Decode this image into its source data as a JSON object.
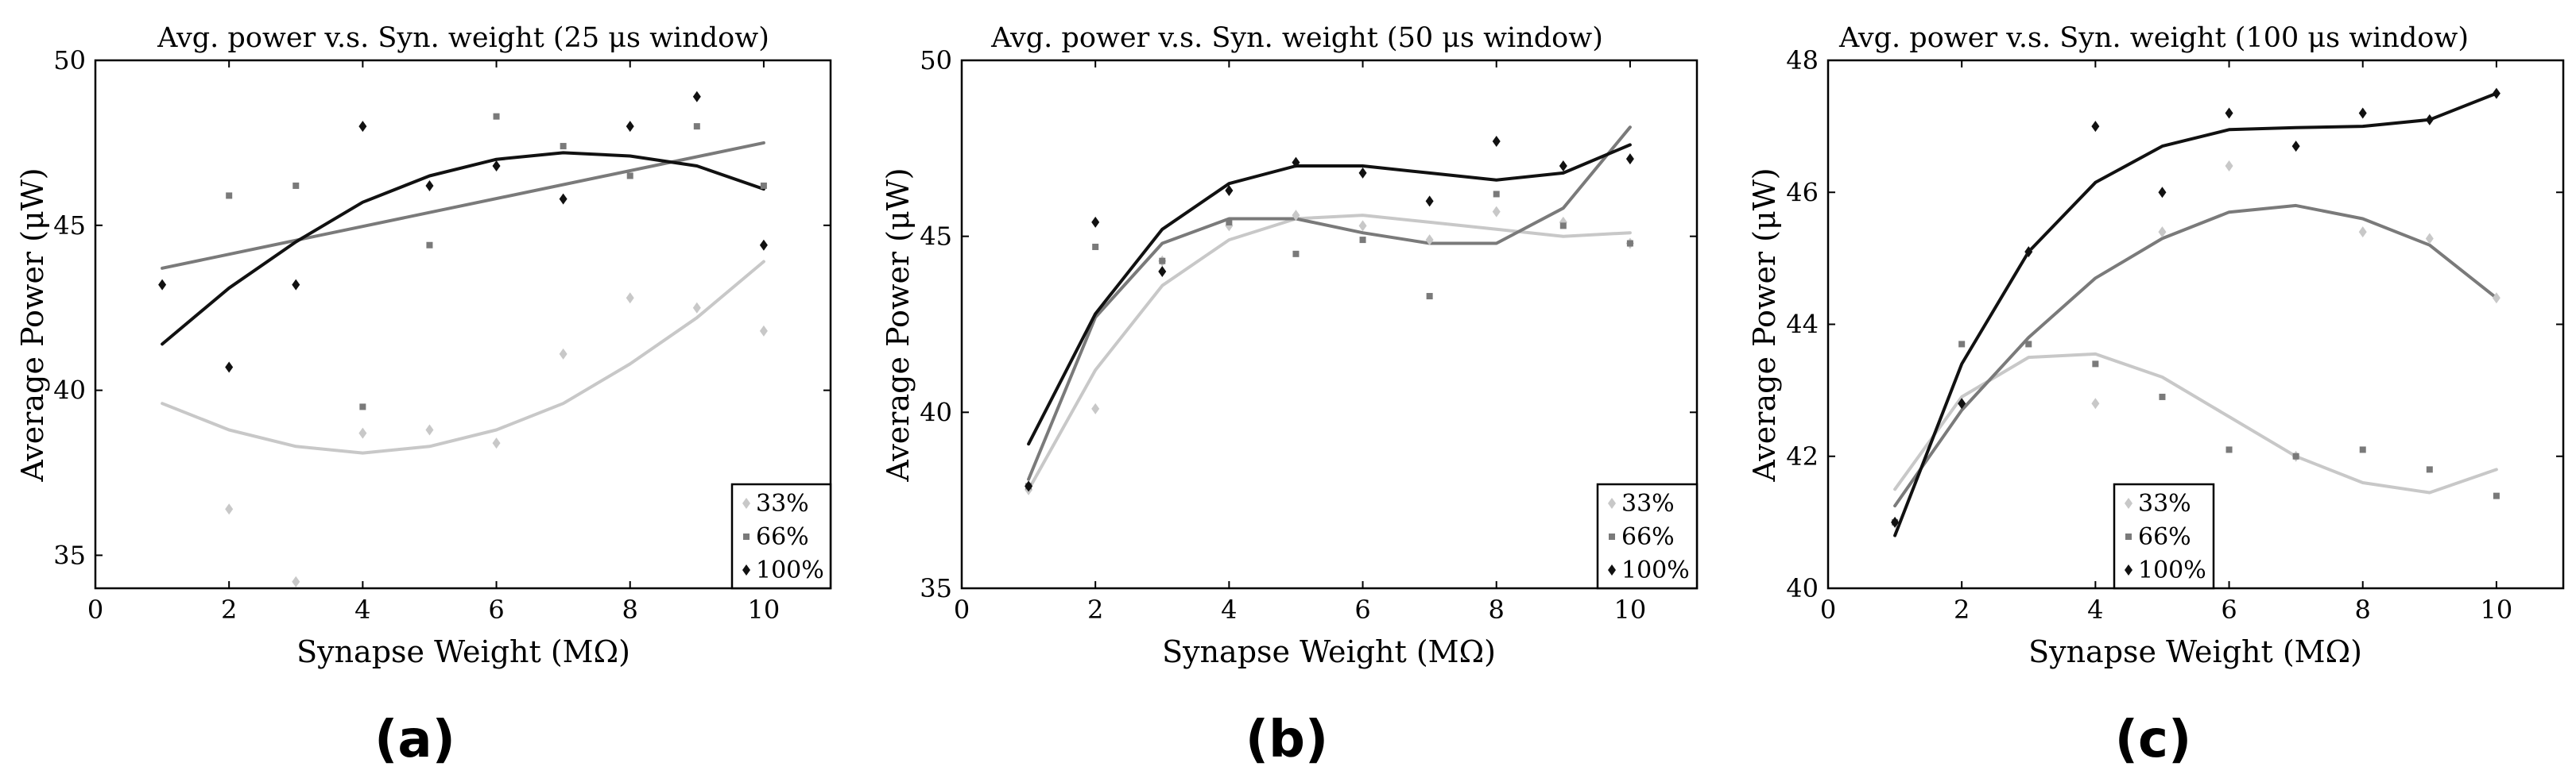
{
  "chart_data": [
    {
      "type": "scatter",
      "panel_label": "(a)",
      "title": "Avg. power v.s. Syn. weight (25 μs window)",
      "xlabel": "Synapse Weight (MΩ)",
      "ylabel": "Average Power (μW)",
      "xlim": [
        0,
        11
      ],
      "ylim": [
        34,
        50
      ],
      "xticks": [
        0,
        2,
        4,
        6,
        8,
        10
      ],
      "yticks": [
        35,
        40,
        45,
        50
      ],
      "legend_position": "bottom-right",
      "series": [
        {
          "name": "33%",
          "color": "#c8c8c8",
          "marker": "diamond",
          "points": [
            [
              2,
              36.4
            ],
            [
              3,
              34.2
            ],
            [
              4,
              38.7
            ],
            [
              5,
              38.8
            ],
            [
              6,
              38.4
            ],
            [
              7,
              41.1
            ],
            [
              8,
              42.8
            ],
            [
              9,
              42.5
            ],
            [
              10,
              41.8
            ]
          ],
          "fit": [
            [
              1,
              39.6
            ],
            [
              2,
              38.8
            ],
            [
              3,
              38.3
            ],
            [
              4,
              38.1
            ],
            [
              5,
              38.3
            ],
            [
              6,
              38.8
            ],
            [
              7,
              39.6
            ],
            [
              8,
              40.8
            ],
            [
              9,
              42.2
            ],
            [
              10,
              43.9
            ]
          ]
        },
        {
          "name": "66%",
          "color": "#7a7a7a",
          "marker": "square",
          "points": [
            [
              2,
              45.9
            ],
            [
              3,
              46.2
            ],
            [
              4,
              39.5
            ],
            [
              5,
              44.4
            ],
            [
              6,
              48.3
            ],
            [
              7,
              47.4
            ],
            [
              8,
              46.5
            ],
            [
              9,
              48
            ],
            [
              10,
              46.2
            ]
          ],
          "fit": [
            [
              1,
              43.7
            ],
            [
              10,
              47.5
            ]
          ]
        },
        {
          "name": "100%",
          "color": "#111111",
          "marker": "diamond",
          "points": [
            [
              1,
              43.2
            ],
            [
              2,
              40.7
            ],
            [
              3,
              43.2
            ],
            [
              4,
              48
            ],
            [
              5,
              46.2
            ],
            [
              6,
              46.8
            ],
            [
              7,
              45.8
            ],
            [
              8,
              48
            ],
            [
              9,
              48.9
            ],
            [
              10,
              44.4
            ]
          ],
          "fit": [
            [
              1,
              41.4
            ],
            [
              2,
              43.1
            ],
            [
              3,
              44.5
            ],
            [
              4,
              45.7
            ],
            [
              5,
              46.5
            ],
            [
              6,
              47
            ],
            [
              7,
              47.2
            ],
            [
              8,
              47.1
            ],
            [
              9,
              46.8
            ],
            [
              10,
              46.1
            ]
          ]
        }
      ]
    },
    {
      "type": "scatter",
      "panel_label": "(b)",
      "title": "Avg. power v.s. Syn. weight (50 μs window)",
      "xlabel": "Synapse Weight (MΩ)",
      "ylabel": "Average Power (μW)",
      "xlim": [
        0,
        11
      ],
      "ylim": [
        35,
        50
      ],
      "xticks": [
        0,
        2,
        4,
        6,
        8,
        10
      ],
      "yticks": [
        35,
        40,
        45,
        50
      ],
      "legend_position": "bottom-right",
      "series": [
        {
          "name": "33%",
          "color": "#c8c8c8",
          "marker": "diamond",
          "points": [
            [
              1,
              37.8
            ],
            [
              2,
              40.1
            ],
            [
              3,
              44.3
            ],
            [
              4,
              45.3
            ],
            [
              5,
              45.6
            ],
            [
              6,
              45.3
            ],
            [
              7,
              44.9
            ],
            [
              8,
              45.7
            ],
            [
              9,
              45.4
            ],
            [
              10,
              44.8
            ]
          ],
          "fit": [
            [
              1,
              37.8
            ],
            [
              2,
              41.2
            ],
            [
              3,
              43.6
            ],
            [
              4,
              44.9
            ],
            [
              5,
              45.5
            ],
            [
              6,
              45.6
            ],
            [
              7,
              45.4
            ],
            [
              8,
              45.2
            ],
            [
              9,
              45
            ],
            [
              10,
              45.1
            ]
          ]
        },
        {
          "name": "66%",
          "color": "#7a7a7a",
          "marker": "square",
          "points": [
            [
              1,
              37.9
            ],
            [
              2,
              44.7
            ],
            [
              3,
              44.3
            ],
            [
              4,
              45.4
            ],
            [
              5,
              44.5
            ],
            [
              6,
              44.9
            ],
            [
              7,
              43.3
            ],
            [
              8,
              46.2
            ],
            [
              9,
              45.3
            ],
            [
              10,
              44.8
            ]
          ],
          "fit": [
            [
              1,
              38.1
            ],
            [
              2,
              42.7
            ],
            [
              3,
              44.8
            ],
            [
              4,
              45.5
            ],
            [
              5,
              45.5
            ],
            [
              6,
              45.1
            ],
            [
              7,
              44.8
            ],
            [
              8,
              44.8
            ],
            [
              9,
              45.8
            ],
            [
              10,
              48.1
            ]
          ]
        },
        {
          "name": "100%",
          "color": "#111111",
          "marker": "diamond",
          "points": [
            [
              1,
              37.9
            ],
            [
              2,
              45.4
            ],
            [
              3,
              44
            ],
            [
              4,
              46.3
            ],
            [
              5,
              47.1
            ],
            [
              6,
              46.8
            ],
            [
              7,
              46
            ],
            [
              8,
              47.7
            ],
            [
              9,
              47
            ],
            [
              10,
              47.2
            ]
          ],
          "fit": [
            [
              1,
              39.1
            ],
            [
              2,
              42.8
            ],
            [
              3,
              45.2
            ],
            [
              4,
              46.5
            ],
            [
              5,
              47
            ],
            [
              6,
              47
            ],
            [
              7,
              46.8
            ],
            [
              8,
              46.6
            ],
            [
              9,
              46.8
            ],
            [
              10,
              47.6
            ]
          ]
        }
      ]
    },
    {
      "type": "scatter",
      "panel_label": "(c)",
      "title": "Avg. power v.s. Syn. weight (100 μs window)",
      "xlabel": "Synapse Weight (MΩ)",
      "ylabel": "Average Power (μW)",
      "xlim": [
        0,
        11
      ],
      "ylim": [
        40,
        48
      ],
      "xticks": [
        0,
        2,
        4,
        6,
        8,
        10
      ],
      "yticks": [
        40,
        42,
        44,
        46,
        48
      ],
      "legend_position": "bottom-center",
      "series": [
        {
          "name": "33%",
          "color": "#c8c8c8",
          "marker": "diamond",
          "points": [
            [
              1,
              41
            ],
            [
              2,
              42.8
            ],
            [
              3,
              45.1
            ],
            [
              4,
              42.8
            ],
            [
              5,
              45.4
            ],
            [
              6,
              46.4
            ],
            [
              7,
              42
            ],
            [
              8,
              45.4
            ],
            [
              9,
              45.3
            ],
            [
              10,
              44.4
            ]
          ],
          "fit": [
            [
              1,
              41.5
            ],
            [
              2,
              42.9
            ],
            [
              3,
              43.5
            ],
            [
              4,
              43.55
            ],
            [
              5,
              43.2
            ],
            [
              6,
              42.6
            ],
            [
              7,
              42
            ],
            [
              8,
              41.6
            ],
            [
              9,
              41.45
            ],
            [
              10,
              41.8
            ]
          ]
        },
        {
          "name": "66%",
          "color": "#7a7a7a",
          "marker": "square",
          "points": [
            [
              1,
              41
            ],
            [
              2,
              43.7
            ],
            [
              3,
              43.7
            ],
            [
              4,
              43.4
            ],
            [
              5,
              42.9
            ],
            [
              6,
              42.1
            ],
            [
              7,
              42
            ],
            [
              8,
              42.1
            ],
            [
              9,
              41.8
            ],
            [
              10,
              41.4
            ]
          ],
          "fit": [
            [
              1,
              41.25
            ],
            [
              2,
              42.7
            ],
            [
              3,
              43.8
            ],
            [
              4,
              44.7
            ],
            [
              5,
              45.3
            ],
            [
              6,
              45.7
            ],
            [
              7,
              45.8
            ],
            [
              8,
              45.6
            ],
            [
              9,
              45.2
            ],
            [
              10,
              44.4
            ]
          ]
        },
        {
          "name": "100%",
          "color": "#111111",
          "marker": "diamond",
          "points": [
            [
              1,
              41
            ],
            [
              2,
              42.8
            ],
            [
              3,
              45.1
            ],
            [
              4,
              47
            ],
            [
              5,
              46
            ],
            [
              6,
              47.2
            ],
            [
              7,
              46.7
            ],
            [
              8,
              47.2
            ],
            [
              9,
              47.1
            ],
            [
              10,
              47.5
            ]
          ],
          "fit": [
            [
              1,
              40.8
            ],
            [
              2,
              43.4
            ],
            [
              3,
              45.1
            ],
            [
              4,
              46.15
            ],
            [
              5,
              46.7
            ],
            [
              6,
              46.95
            ],
            [
              7,
              46.98
            ],
            [
              8,
              47
            ],
            [
              9,
              47.1
            ],
            [
              10,
              47.5
            ]
          ]
        }
      ]
    }
  ]
}
